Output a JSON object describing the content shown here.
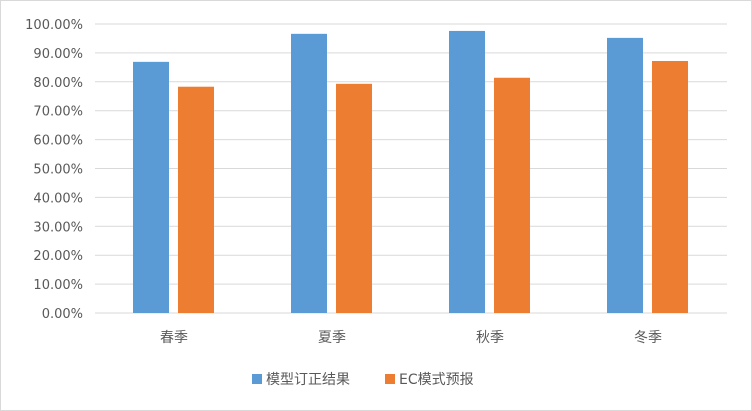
{
  "chart_data": {
    "type": "bar",
    "title": "",
    "xlabel": "",
    "ylabel": "",
    "categories": [
      "春季",
      "夏季",
      "秋季",
      "冬季"
    ],
    "series": [
      {
        "name": "模型订正结果",
        "color": "#5b9bd5",
        "values": [
          86.9,
          96.6,
          97.6,
          95.2
        ]
      },
      {
        "name": "EC模式预报",
        "color": "#ed7d31",
        "values": [
          78.3,
          79.3,
          81.4,
          87.2
        ]
      }
    ],
    "ylim": [
      0,
      100
    ],
    "yticks": [
      0,
      10,
      20,
      30,
      40,
      50,
      60,
      70,
      80,
      90,
      100
    ],
    "ytick_labels": [
      "0.00%",
      "10.00%",
      "20.00%",
      "30.00%",
      "40.00%",
      "50.00%",
      "60.00%",
      "70.00%",
      "80.00%",
      "90.00%",
      "100.00%"
    ],
    "grid": true,
    "legend": "bottom"
  }
}
